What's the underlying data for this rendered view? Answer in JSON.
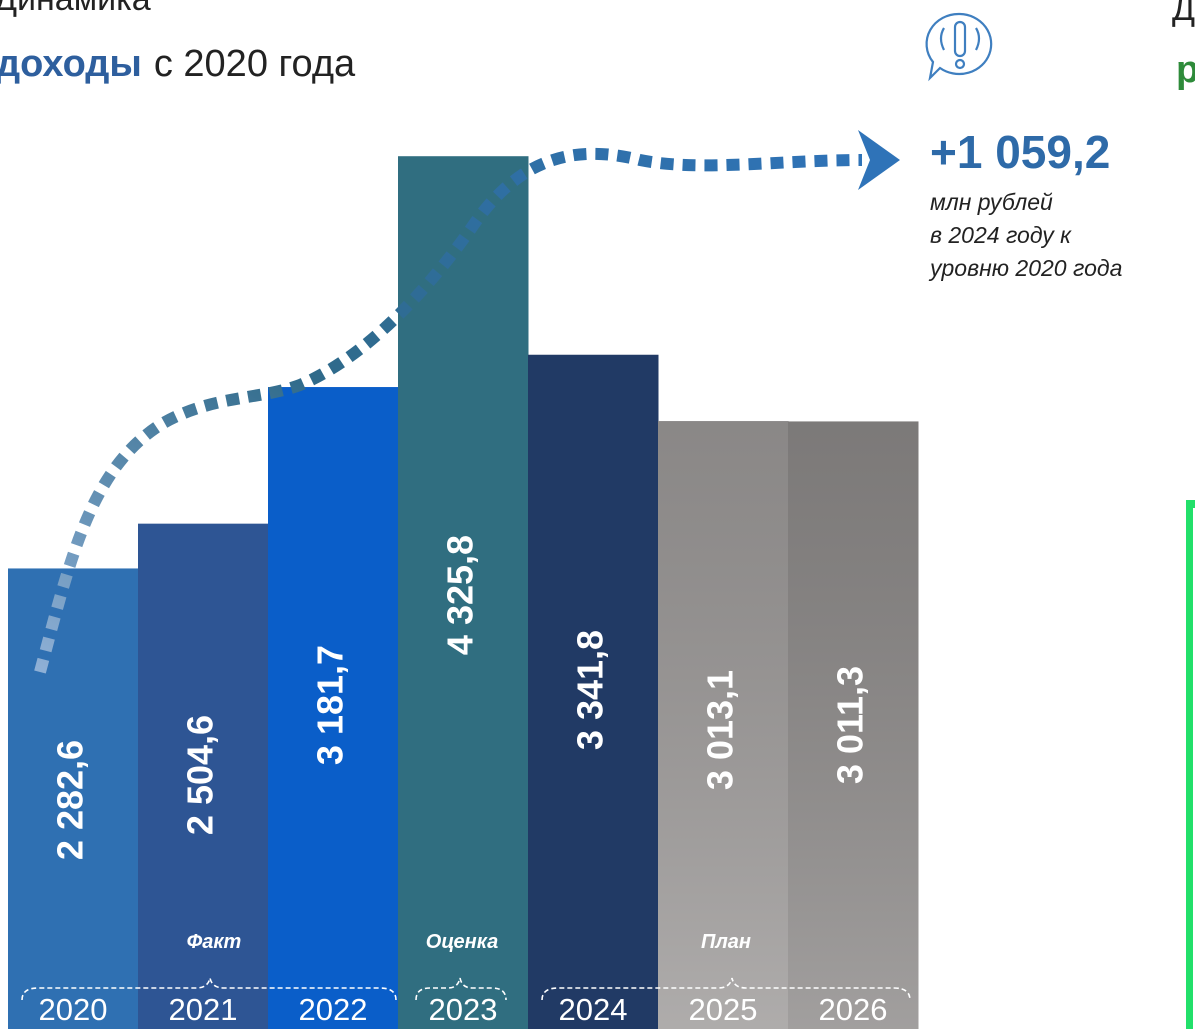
{
  "chart_data": {
    "type": "bar",
    "title": {
      "line1": "Динамика",
      "highlight": "доходы",
      "rest": "с 2020 года"
    },
    "right_heading": [
      "Д",
      "р"
    ],
    "categories": [
      "2020",
      "2021",
      "2022",
      "2023",
      "2024",
      "2025",
      "2026"
    ],
    "values": [
      2282.6,
      2504.6,
      3181.7,
      4325.8,
      3341.8,
      3013.1,
      3011.3
    ],
    "value_labels": [
      "2 282,6",
      "2 504,6",
      "3 181,7",
      "4 325,8",
      "3 341,8",
      "3 013,1",
      "3 011,3"
    ],
    "colors": [
      "#2f70b2",
      "#2e5594",
      "#0a5ec9",
      "#306e80",
      "#213a65",
      "#9d9a99",
      "#8d8a89"
    ],
    "ylim": [
      0,
      5100
    ],
    "groups": [
      "Факт",
      "Оценка",
      "План"
    ],
    "annotation": {
      "value": "+1 059,2",
      "lines": [
        "млн рублей",
        "в 2024 году к",
        "уровню 2020 года"
      ]
    }
  }
}
